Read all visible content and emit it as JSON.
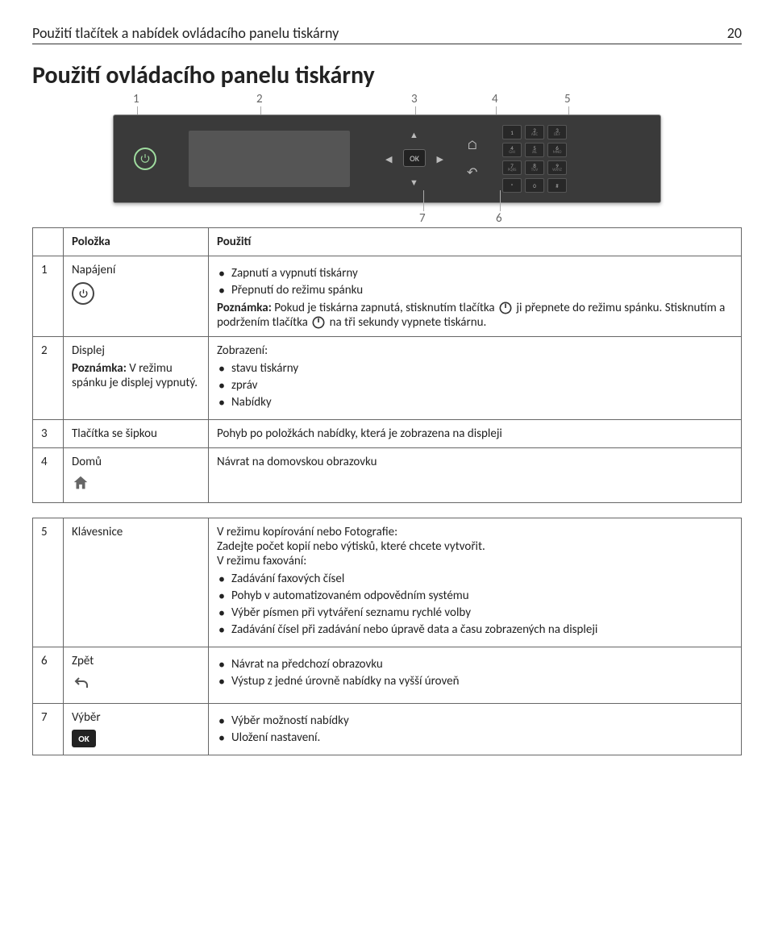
{
  "header": {
    "title": "Použití tlačítek a nabídek ovládacího panelu tiskárny",
    "page": "20"
  },
  "section_heading": "Použití ovládacího panelu tiskárny",
  "figure": {
    "callouts": [
      "1",
      "2",
      "3",
      "4",
      "5",
      "6",
      "7"
    ],
    "ok_label": "OK",
    "keypad": [
      {
        "n": "1",
        "s": ""
      },
      {
        "n": "2",
        "s": "ABC"
      },
      {
        "n": "3",
        "s": "DEF"
      },
      {
        "n": "4",
        "s": "GHI"
      },
      {
        "n": "5",
        "s": "JKL"
      },
      {
        "n": "6",
        "s": "MNO"
      },
      {
        "n": "7",
        "s": "PQRS"
      },
      {
        "n": "8",
        "s": "TUV"
      },
      {
        "n": "9",
        "s": "WXYZ"
      },
      {
        "n": "*",
        "s": ""
      },
      {
        "n": "0",
        "s": ""
      },
      {
        "n": "#",
        "s": ""
      }
    ]
  },
  "t1": {
    "headers": {
      "item": "Položka",
      "use": "Použití"
    },
    "r1": {
      "num": "1",
      "name": "Napájení",
      "b1": "Zapnutí a vypnutí tiskárny",
      "b2": "Přepnutí do režimu spánku",
      "note_label": "Poznámka:",
      "note_a": "Pokud je tiskárna zapnutá, stisknutím tlačítka",
      "note_b": "ji přepnete do režimu spánku. Stisknutím a podržením tlačítka",
      "note_c": "na tři sekundy vypnete tiskárnu."
    },
    "r2": {
      "num": "2",
      "name": "Displej",
      "sub_label": "Poznámka:",
      "sub_text": "V režimu spánku je displej vypnutý.",
      "use_lead": "Zobrazení:",
      "b1": "stavu tiskárny",
      "b2": "zpráv",
      "b3": "Nabídky"
    },
    "r3": {
      "num": "3",
      "name": "Tlačítka se šipkou",
      "use": "Pohyb po položkách nabídky, která je zobrazena na displeji"
    },
    "r4": {
      "num": "4",
      "name": "Domů",
      "use": "Návrat na domovskou obrazovku"
    }
  },
  "t2": {
    "r5": {
      "num": "5",
      "name": "Klávesnice",
      "lead": "V režimu kopírování nebo Fotografie:",
      "line2": "Zadejte počet kopií nebo výtisků, které chcete vytvořit.",
      "line3": "V režimu faxování:",
      "b1": "Zadávání faxových čísel",
      "b2": "Pohyb v automatizovaném odpovědním systému",
      "b3": "Výběr písmen při vytváření seznamu rychlé volby",
      "b4": "Zadávání čísel při zadávání nebo úpravě data a času zobrazených na displeji"
    },
    "r6": {
      "num": "6",
      "name": "Zpět",
      "b1": "Návrat na předchozí obrazovku",
      "b2": "Výstup z jedné úrovně nabídky na vyšší úroveň"
    },
    "r7": {
      "num": "7",
      "name": "Výběr",
      "b1": "Výběr možností nabídky",
      "b2": "Uložení nastavení."
    }
  },
  "style": {
    "body_font_size": 15,
    "heading_font_size": 30,
    "table_border_color": "#666666",
    "text_color": "#222222",
    "figure_bg": "#3a3a3a"
  }
}
